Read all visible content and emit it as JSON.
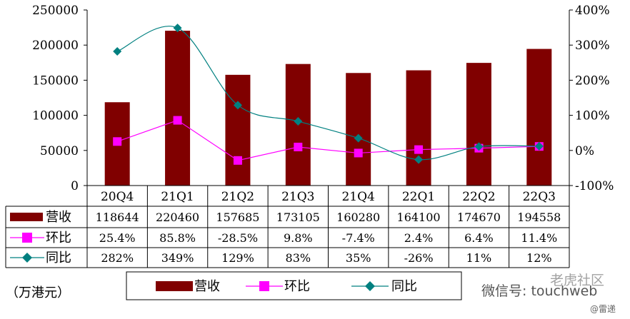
{
  "chart_data": {
    "type": "bar",
    "categories": [
      "20Q4",
      "21Q1",
      "21Q2",
      "21Q3",
      "21Q4",
      "22Q1",
      "22Q2",
      "22Q3"
    ],
    "series": [
      {
        "name": "营收",
        "type": "bar",
        "axis": "left",
        "color": "#800000",
        "values": [
          118644,
          220460,
          157685,
          173105,
          160280,
          164100,
          174670,
          194558
        ],
        "labels": [
          "118644",
          "220460",
          "157685",
          "173105",
          "160280",
          "164100",
          "174670",
          "194558"
        ]
      },
      {
        "name": "环比",
        "type": "line",
        "axis": "right",
        "color": "#FF00FF",
        "marker": "square",
        "values": [
          25.4,
          85.8,
          -28.5,
          9.8,
          -7.4,
          2.4,
          6.4,
          11.4
        ],
        "labels": [
          "25.4%",
          "85.8%",
          "-28.5%",
          "9.8%",
          "-7.4%",
          "2.4%",
          "6.4%",
          "11.4%"
        ]
      },
      {
        "name": "同比",
        "type": "line",
        "axis": "right",
        "color": "#008080",
        "marker": "diamond",
        "smooth": true,
        "values": [
          282,
          349,
          129,
          83,
          35,
          -26,
          11,
          12
        ],
        "labels": [
          "282%",
          "349%",
          "129%",
          "83%",
          "35%",
          "-26%",
          "11%",
          "12%"
        ]
      }
    ],
    "y_left": {
      "ticks": [
        "250000",
        "200000",
        "150000",
        "100000",
        "50000",
        "0"
      ],
      "lim": [
        0,
        250000
      ]
    },
    "y_right": {
      "ticks": [
        "400%",
        "300%",
        "200%",
        "100%",
        "0%",
        "-100%"
      ],
      "lim": [
        -100,
        400
      ]
    },
    "unit_label": "（万港元）",
    "legend_position": "bottom",
    "grid": false
  },
  "watermark": {
    "text": "微信号: touchweb",
    "brand": "老虎社区",
    "small": "@雷递"
  }
}
